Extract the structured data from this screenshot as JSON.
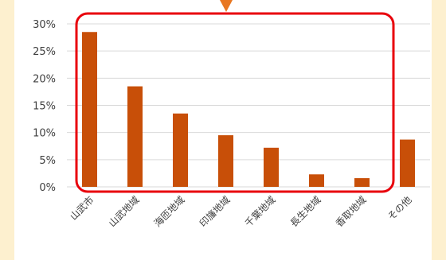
{
  "chart_data": {
    "type": "bar",
    "categories": [
      "山武市",
      "山武地域",
      "海匝地域",
      "印旛地域",
      "千葉地域",
      "長生地域",
      "香取地域",
      "その他"
    ],
    "values": [
      28.5,
      18.5,
      13.5,
      9.5,
      7.2,
      2.3,
      1.6,
      8.7
    ],
    "ylim": [
      0,
      30
    ],
    "yticks": [
      "0%",
      "5%",
      "10%",
      "15%",
      "20%",
      "25%",
      "30%"
    ],
    "ytick_values": [
      0,
      5,
      10,
      15,
      20,
      25,
      30
    ],
    "grid": true,
    "bar_color": "#c84f08",
    "grid_color": "#d9d9d9"
  },
  "annotations": {
    "highlight_box_color": "#e8000b",
    "arrow_color": "#e87722"
  },
  "page": {
    "background_color": "#fdf0cf",
    "panel_color": "#ffffff"
  }
}
